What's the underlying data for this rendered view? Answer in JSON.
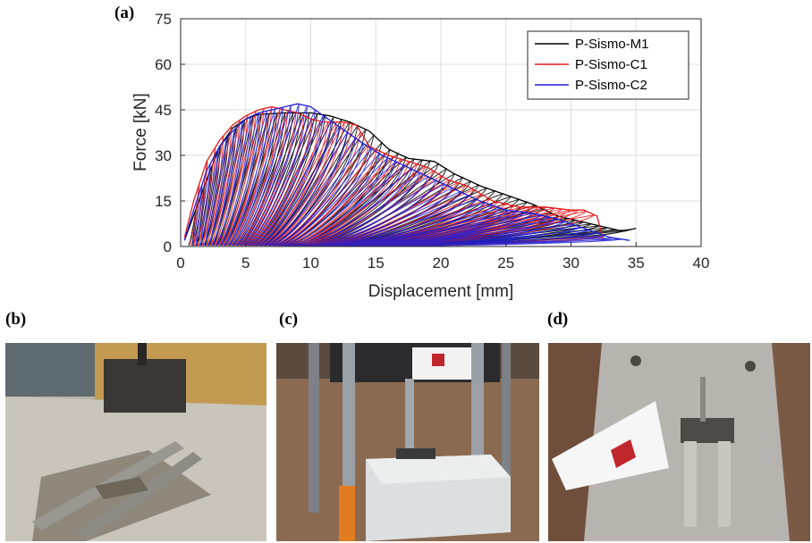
{
  "panels": {
    "a": "(a)",
    "b": "(b)",
    "c": "(c)",
    "d": "(d)"
  },
  "chart_data": {
    "type": "line",
    "xlabel": "Displacement [mm]",
    "ylabel": "Force [kN]",
    "xlim": [
      0,
      40
    ],
    "ylim": [
      0,
      75
    ],
    "xticks": [
      0,
      5,
      10,
      15,
      20,
      25,
      30,
      35,
      40
    ],
    "yticks": [
      0,
      15,
      30,
      45,
      60,
      75
    ],
    "grid": true,
    "legend_position": "top-right",
    "series": [
      {
        "name": "P-Sismo-M1",
        "color": "#000000",
        "envelope": [
          [
            0.3,
            2
          ],
          [
            2,
            22
          ],
          [
            3,
            33
          ],
          [
            4,
            39
          ],
          [
            5,
            42
          ],
          [
            6,
            43.5
          ],
          [
            8,
            44
          ],
          [
            10,
            44
          ],
          [
            11.5,
            43
          ],
          [
            13,
            41
          ],
          [
            14.5,
            38
          ],
          [
            16,
            32
          ],
          [
            17.5,
            29
          ],
          [
            19.5,
            28
          ],
          [
            21,
            24
          ],
          [
            23,
            20
          ],
          [
            25,
            17
          ],
          [
            27,
            14
          ],
          [
            29,
            10
          ],
          [
            32,
            7
          ],
          [
            34,
            5
          ],
          [
            35,
            6
          ]
        ]
      },
      {
        "name": "P-Sismo-C1",
        "color": "#e41a1c",
        "envelope": [
          [
            0.3,
            3
          ],
          [
            1,
            15
          ],
          [
            2,
            28
          ],
          [
            3,
            35
          ],
          [
            4,
            40
          ],
          [
            5,
            43
          ],
          [
            6,
            45
          ],
          [
            7,
            46
          ],
          [
            8,
            45
          ],
          [
            9,
            44
          ],
          [
            10,
            42
          ],
          [
            11,
            41
          ],
          [
            12.5,
            41
          ],
          [
            13.5,
            40
          ],
          [
            14.5,
            33
          ],
          [
            16,
            30
          ],
          [
            17.5,
            28
          ],
          [
            19,
            26
          ],
          [
            20.5,
            22
          ],
          [
            22,
            20
          ],
          [
            24,
            15
          ],
          [
            26,
            13
          ],
          [
            28,
            13
          ],
          [
            30,
            12
          ],
          [
            31,
            12
          ],
          [
            32,
            10
          ],
          [
            32.5,
            2
          ]
        ]
      },
      {
        "name": "P-Sismo-C2",
        "color": "#1f1fd6",
        "envelope": [
          [
            0.3,
            2
          ],
          [
            1,
            12
          ],
          [
            2,
            25
          ],
          [
            3,
            33
          ],
          [
            4,
            38
          ],
          [
            5,
            42
          ],
          [
            6,
            44
          ],
          [
            7,
            45
          ],
          [
            8,
            46
          ],
          [
            9,
            47
          ],
          [
            10,
            46
          ],
          [
            11,
            43
          ],
          [
            12,
            40
          ],
          [
            13,
            37
          ],
          [
            14,
            34
          ],
          [
            15.5,
            30
          ],
          [
            17,
            27
          ],
          [
            18.5,
            24
          ],
          [
            20,
            21
          ],
          [
            21.5,
            18
          ],
          [
            23,
            15
          ],
          [
            25,
            12
          ],
          [
            27,
            11
          ],
          [
            29,
            9
          ],
          [
            31,
            6
          ],
          [
            33,
            3
          ],
          [
            34.5,
            2
          ]
        ]
      }
    ]
  }
}
